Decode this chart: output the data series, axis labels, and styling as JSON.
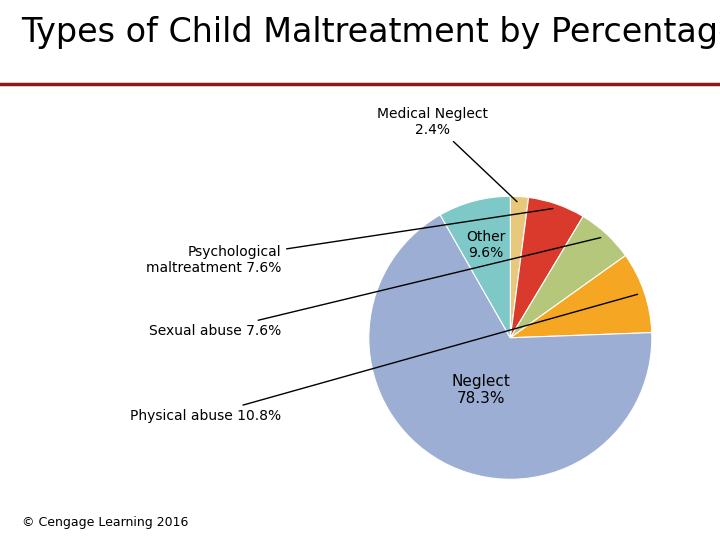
{
  "title": "Types of Child Maltreatment by Percentage",
  "copyright": "© Cengage Learning 2016",
  "slices": [
    {
      "label": "Neglect",
      "pct": 78.3,
      "color": "#9daed4"
    },
    {
      "label": "Physical abuse",
      "pct": 10.8,
      "color": "#f5a623"
    },
    {
      "label": "Sexual abuse",
      "pct": 7.6,
      "color": "#b5c77a"
    },
    {
      "label": "Psychological\nmaltreatment",
      "pct": 7.6,
      "color": "#d93a2b"
    },
    {
      "label": "Medical Neglect",
      "pct": 2.4,
      "color": "#e8c87a"
    },
    {
      "label": "Other",
      "pct": 9.6,
      "color": "#7ec8c8"
    }
  ],
  "background_color": "#ffffff",
  "title_fontsize": 24,
  "label_fontsize": 10,
  "copyright_fontsize": 9,
  "line_color": "#8b1a1a"
}
